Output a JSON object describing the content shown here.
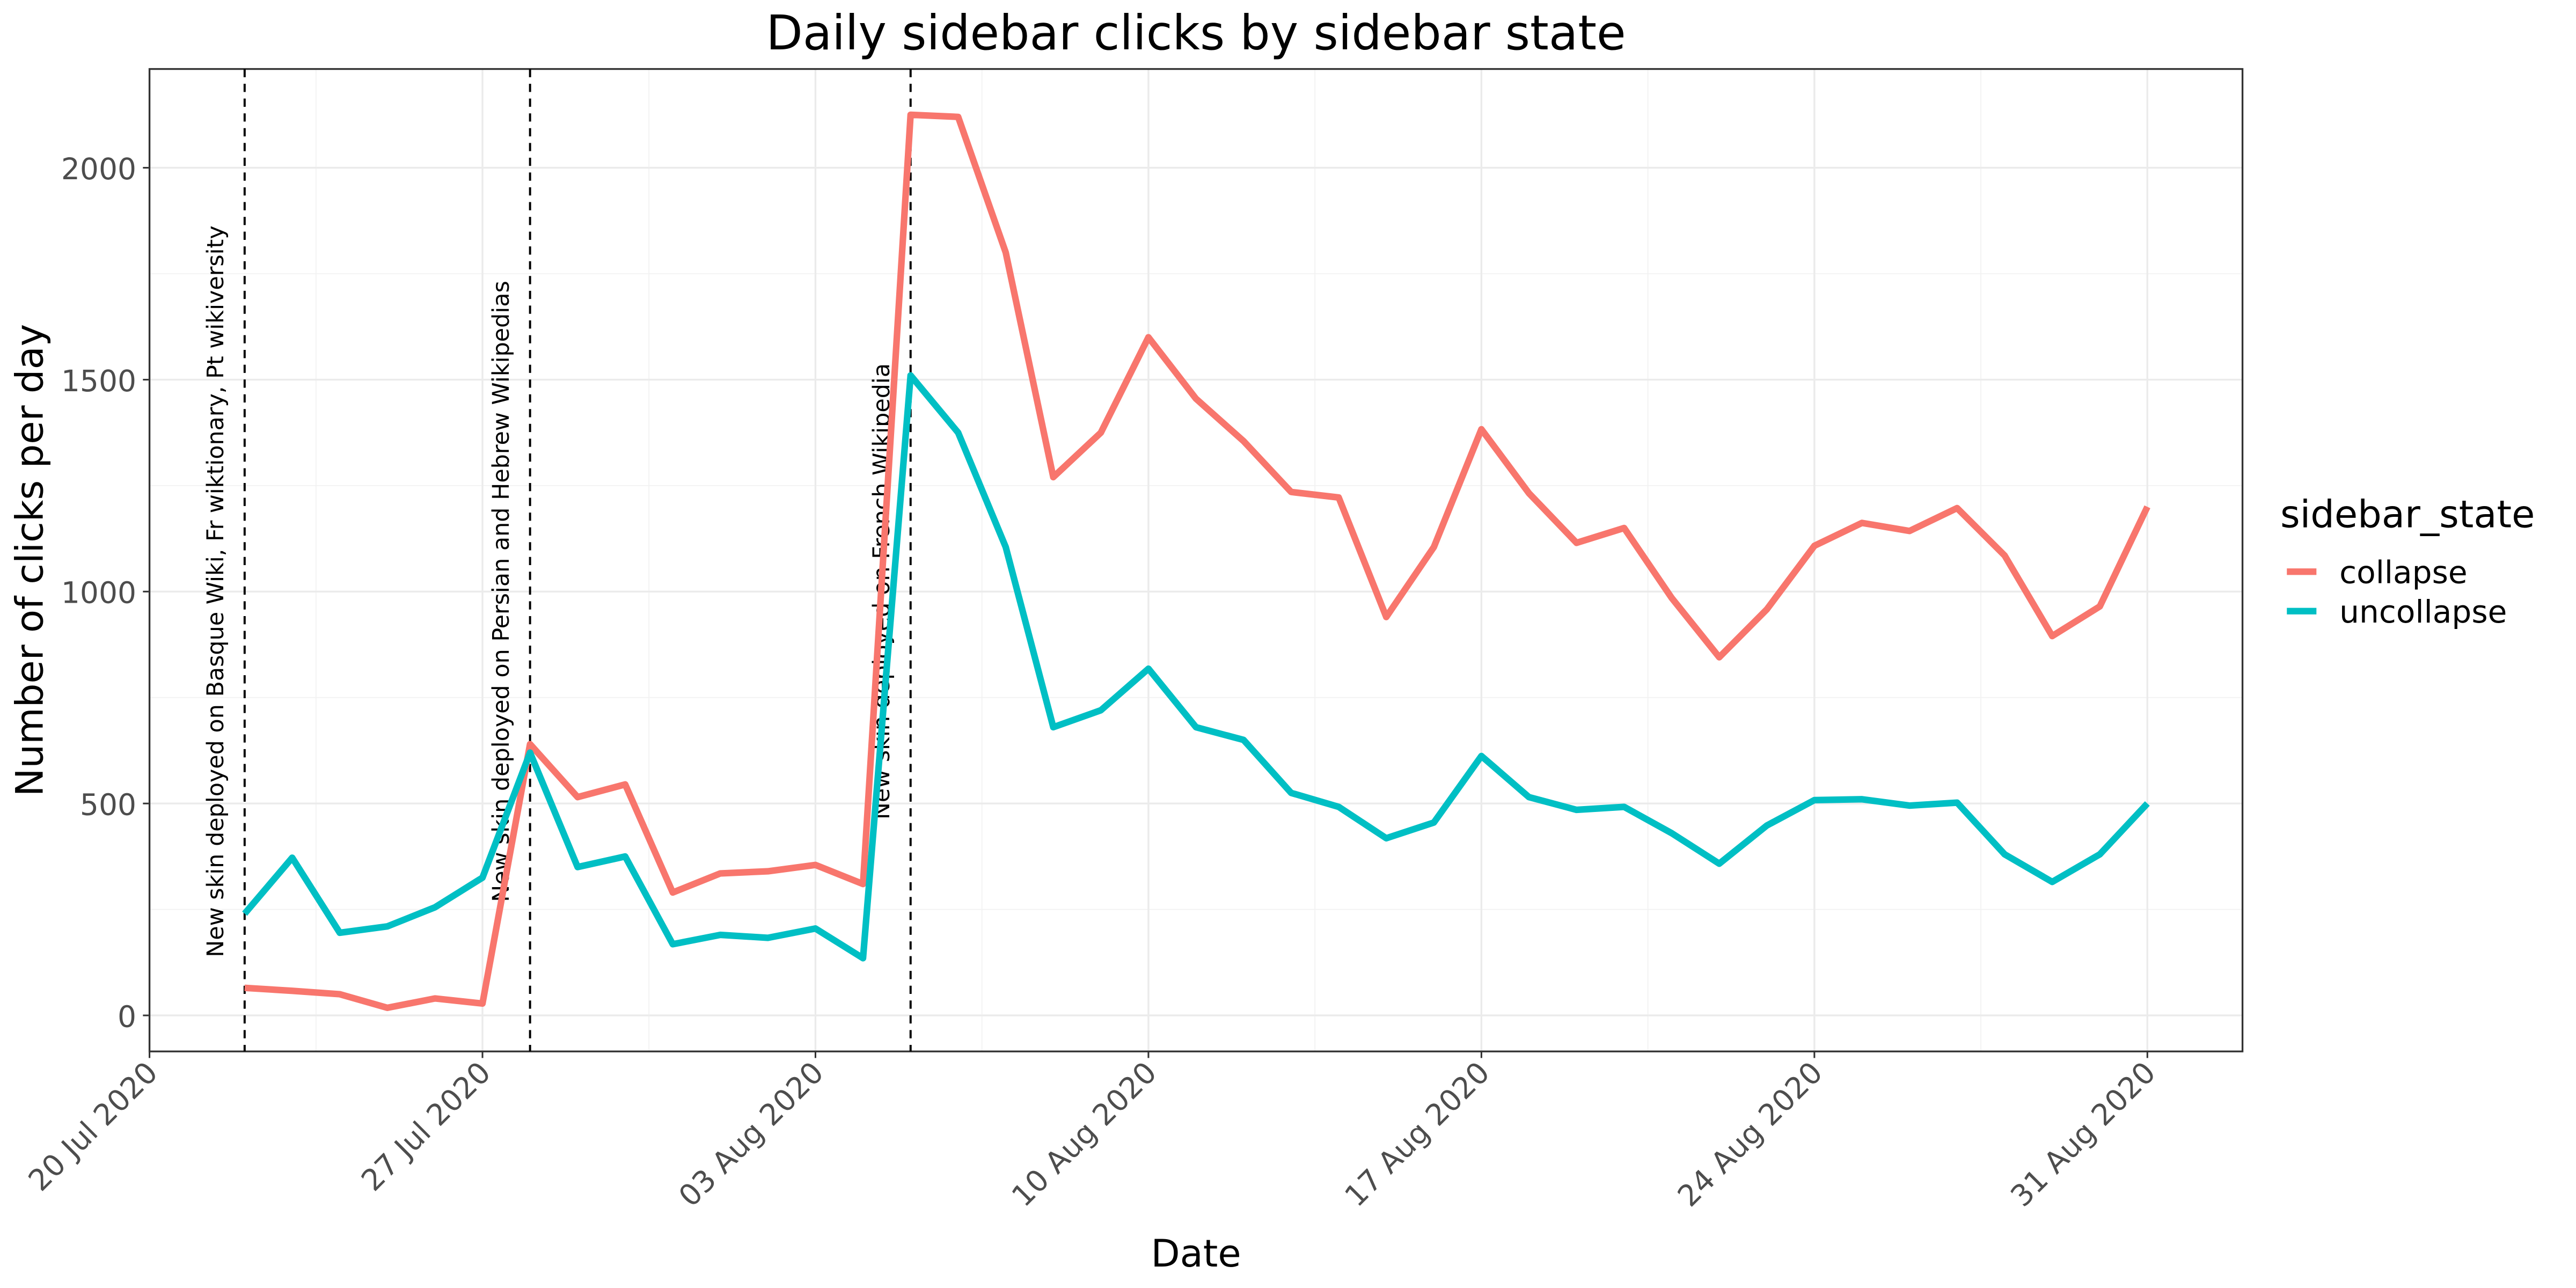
{
  "chart_data": {
    "type": "line",
    "title": "Daily sidebar clicks by sidebar state",
    "x_label": "Date",
    "y_label": "Number of clicks per day",
    "legend_title": "sidebar_state",
    "legend_position": "right",
    "grid": true,
    "x": [
      "2020-07-22",
      "2020-07-23",
      "2020-07-24",
      "2020-07-25",
      "2020-07-26",
      "2020-07-27",
      "2020-07-28",
      "2020-07-29",
      "2020-07-30",
      "2020-07-31",
      "2020-08-01",
      "2020-08-02",
      "2020-08-03",
      "2020-08-04",
      "2020-08-05",
      "2020-08-06",
      "2020-08-07",
      "2020-08-08",
      "2020-08-09",
      "2020-08-10",
      "2020-08-11",
      "2020-08-12",
      "2020-08-13",
      "2020-08-14",
      "2020-08-15",
      "2020-08-16",
      "2020-08-17",
      "2020-08-18",
      "2020-08-19",
      "2020-08-20",
      "2020-08-21",
      "2020-08-22",
      "2020-08-23",
      "2020-08-24",
      "2020-08-25",
      "2020-08-26",
      "2020-08-27",
      "2020-08-28",
      "2020-08-29",
      "2020-08-30",
      "2020-08-31"
    ],
    "series": [
      {
        "name": "collapse",
        "color": "#f8766d",
        "values": [
          65,
          58,
          50,
          18,
          40,
          28,
          640,
          515,
          545,
          290,
          335,
          340,
          355,
          310,
          2125,
          2120,
          1800,
          1270,
          1375,
          1600,
          1455,
          1355,
          1235,
          1222,
          940,
          1105,
          1383,
          1232,
          1115,
          1150,
          985,
          845,
          958,
          1108,
          1162,
          1143,
          1197,
          1085,
          895,
          965,
          1200
        ]
      },
      {
        "name": "uncollapse",
        "color": "#00bfc4",
        "values": [
          240,
          372,
          195,
          210,
          255,
          325,
          620,
          350,
          375,
          168,
          190,
          183,
          205,
          135,
          1510,
          1375,
          1105,
          680,
          720,
          818,
          680,
          650,
          525,
          492,
          418,
          455,
          612,
          515,
          485,
          492,
          430,
          358,
          448,
          508,
          510,
          495,
          502,
          380,
          315,
          380,
          500
        ]
      }
    ],
    "annotations": [
      {
        "x": "2020-07-22",
        "label": "New skin deployed on Basque Wiki, Fr wiktionary, Pt wikiversity"
      },
      {
        "x": "2020-07-28",
        "label": "New skin deployed on Persian and Hebrew Wikipedias"
      },
      {
        "x": "2020-08-05",
        "label": "New skin deployed on French Wikipedia"
      }
    ],
    "xlim": [
      "2020-07-20",
      "2020-09-02"
    ],
    "xticks": [
      {
        "value": "2020-07-20",
        "label": "20 Jul 2020"
      },
      {
        "value": "2020-07-27",
        "label": "27 Jul 2020"
      },
      {
        "value": "2020-08-03",
        "label": "03 Aug 2020"
      },
      {
        "value": "2020-08-10",
        "label": "10 Aug 2020"
      },
      {
        "value": "2020-08-17",
        "label": "17 Aug 2020"
      },
      {
        "value": "2020-08-24",
        "label": "24 Aug 2020"
      },
      {
        "value": "2020-08-31",
        "label": "31 Aug 2020"
      }
    ],
    "ylim": [
      -85,
      2233
    ],
    "yticks": [
      0,
      500,
      1000,
      1500,
      2000
    ]
  }
}
